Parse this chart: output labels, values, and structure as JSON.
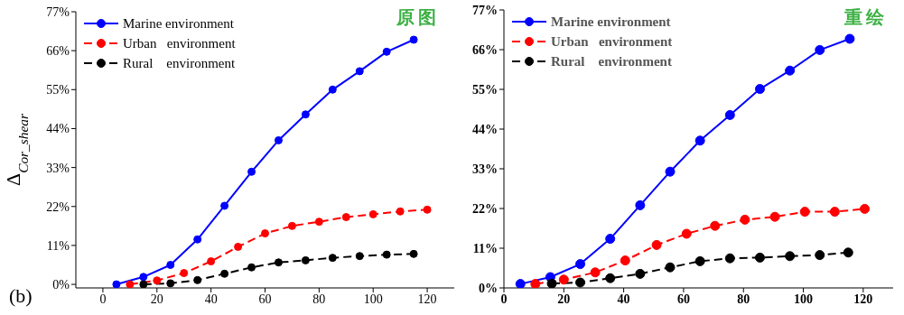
{
  "chart_data": [
    {
      "type": "line",
      "ylabel": "Δ$_{Cor_shear}$",
      "annotations": [
        "原图",
        "(b)"
      ],
      "xlim": [
        -10,
        130
      ],
      "xticks": [
        0,
        20,
        40,
        60,
        80,
        100,
        120
      ],
      "ylim": [
        -1,
        77
      ],
      "yticks": [
        {
          "value": 0,
          "label": "0%"
        },
        {
          "value": 11,
          "label": "11%"
        },
        {
          "value": 22,
          "label": "22%"
        },
        {
          "value": 33,
          "label": "33%"
        },
        {
          "value": 44,
          "label": "44%"
        },
        {
          "value": 55,
          "label": "55%"
        },
        {
          "value": 66,
          "label": "66%"
        },
        {
          "value": 77,
          "label": "77%"
        }
      ],
      "legend": "top left",
      "marker": "circle",
      "grid": false,
      "series": [
        {
          "name": "Marine environment",
          "color": "#0000ff",
          "line_style": "solid",
          "x": [
            5,
            15,
            25,
            35,
            45,
            55,
            65,
            75,
            85,
            95,
            105,
            115
          ],
          "values": [
            0,
            2.1,
            5.5,
            12.7,
            22.2,
            31.8,
            40.7,
            48.0,
            55.0,
            60.2,
            65.7,
            69.1
          ]
        },
        {
          "name": "Urban   environment",
          "color": "#ff0000",
          "line_style": "dashed",
          "x": [
            10,
            20,
            30,
            40,
            50,
            60,
            70,
            80,
            90,
            100,
            110,
            120
          ],
          "values": [
            0,
            1.1,
            3.2,
            6.5,
            10.6,
            14.4,
            16.5,
            17.7,
            19.0,
            19.8,
            20.6,
            21.1
          ]
        },
        {
          "name": "Rural    environment",
          "color": "#000000",
          "line_style": "dashed",
          "x": [
            15,
            25,
            35,
            45,
            55,
            65,
            75,
            85,
            95,
            105,
            115
          ],
          "values": [
            0,
            0.3,
            1.2,
            3.0,
            4.8,
            6.2,
            6.8,
            7.5,
            8.0,
            8.4,
            8.6
          ]
        }
      ]
    },
    {
      "type": "line",
      "annotations": [
        "重绘"
      ],
      "xlim": [
        0,
        130
      ],
      "xticks": [
        0,
        20,
        40,
        60,
        80,
        100,
        120
      ],
      "ylim": [
        0,
        77
      ],
      "yticks": [
        {
          "value": 0,
          "label": "0%"
        },
        {
          "value": 11,
          "label": "11%"
        },
        {
          "value": 22,
          "label": "22%"
        },
        {
          "value": 33,
          "label": "33%"
        },
        {
          "value": 44,
          "label": "44%"
        },
        {
          "value": 55,
          "label": "55%"
        },
        {
          "value": 66,
          "label": "66%"
        },
        {
          "value": 77,
          "label": "77%"
        }
      ],
      "legend": "top left",
      "marker": "circle",
      "grid": false,
      "series": [
        {
          "name": "Marine environment",
          "color": "#0000ff",
          "line_style": "solid",
          "x": [
            5.5,
            15.5,
            25.5,
            35.5,
            45.5,
            55.5,
            65.5,
            75.5,
            85.5,
            95.5,
            105.5,
            115.5
          ],
          "values": [
            1.1,
            3.0,
            6.6,
            13.6,
            22.9,
            32.2,
            40.8,
            47.9,
            55.1,
            60.2,
            65.9,
            69.0
          ]
        },
        {
          "name": "Urban   environment",
          "color": "#ff0000",
          "line_style": "dashed",
          "x": [
            10.5,
            20,
            30.5,
            40.5,
            51,
            61,
            70.5,
            80.5,
            90.5,
            100.5,
            110.5,
            120.5
          ],
          "values": [
            1.1,
            2.3,
            4.3,
            7.6,
            11.9,
            15.0,
            17.2,
            18.9,
            19.7,
            21.1,
            21.1,
            21.9
          ]
        },
        {
          "name": "Rural    environment",
          "color": "#000000",
          "line_style": "dashed",
          "x": [
            16,
            25.5,
            35.5,
            45.5,
            55.5,
            65.5,
            75.5,
            85.5,
            95.5,
            105.5,
            115
          ],
          "values": [
            1.2,
            1.5,
            2.7,
            3.9,
            5.7,
            7.4,
            8.2,
            8.4,
            8.8,
            9.1,
            9.8
          ]
        }
      ]
    }
  ]
}
